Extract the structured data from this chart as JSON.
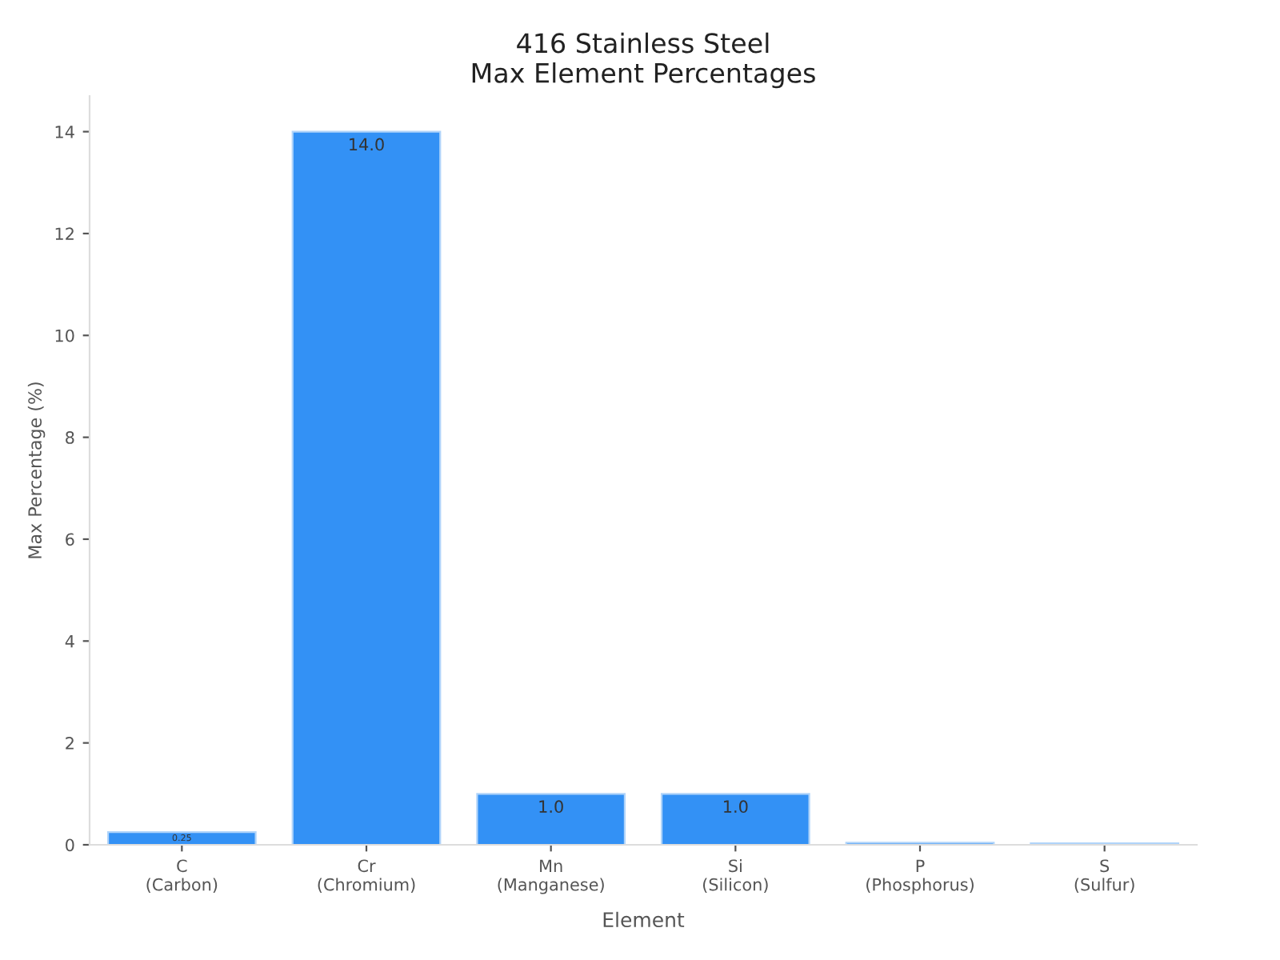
{
  "chart_data": {
    "type": "bar",
    "title": "416 Stainless Steel\nMax Element Percentages",
    "categories": [
      "C\n(Carbon)",
      "Cr\n(Chromium)",
      "Mn\n(Manganese)",
      "Si\n(Silicon)",
      "P\n(Phosphorus)",
      "S\n(Sulfur)"
    ],
    "values": [
      0.25,
      14.0,
      1.0,
      1.0,
      0.04,
      0.03
    ],
    "value_labels": [
      "0.25",
      "14.0",
      "1.0",
      "1.0",
      null,
      null
    ],
    "color": "#3391f5",
    "xlabel": "Element",
    "ylabel": "Max Percentage (%)",
    "ylim": [
      0,
      14.7
    ],
    "yticks": [
      0,
      2,
      4,
      6,
      8,
      10,
      12,
      14
    ],
    "grid": false,
    "legend": false
  }
}
